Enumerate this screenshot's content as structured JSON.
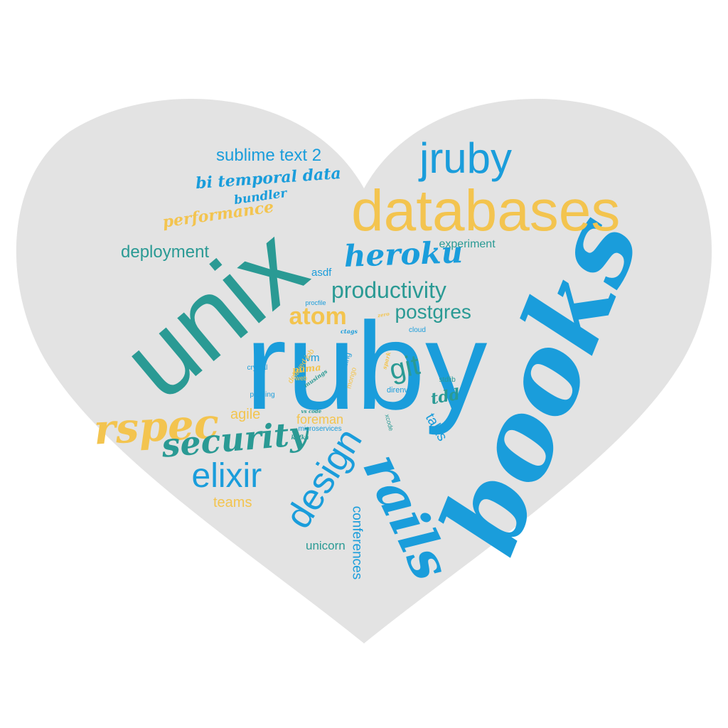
{
  "colors": {
    "background": "#ffffff",
    "heart": "#e3e3e3",
    "blue": "#1a9ddb",
    "teal": "#2a9a94",
    "yellow": "#f3c44f"
  },
  "shape": "heart",
  "words": [
    {
      "text": "ruby",
      "color": "blue",
      "style": "sans"
    },
    {
      "text": "unix",
      "color": "teal",
      "style": "sans"
    },
    {
      "text": "books",
      "color": "blue",
      "style": "script"
    },
    {
      "text": "databases",
      "color": "yellow",
      "style": "sans"
    },
    {
      "text": "jruby",
      "color": "blue",
      "style": "sans"
    },
    {
      "text": "rails",
      "color": "blue",
      "style": "script"
    },
    {
      "text": "design",
      "color": "blue",
      "style": "sans"
    },
    {
      "text": "rspec",
      "color": "yellow",
      "style": "script"
    },
    {
      "text": "security",
      "color": "teal",
      "style": "script"
    },
    {
      "text": "elixir",
      "color": "blue",
      "style": "sans"
    },
    {
      "text": "git",
      "color": "teal",
      "style": "sans"
    },
    {
      "text": "heroku",
      "color": "blue",
      "style": "script"
    },
    {
      "text": "productivity",
      "color": "teal",
      "style": "sans"
    },
    {
      "text": "postgres",
      "color": "teal",
      "style": "sans"
    },
    {
      "text": "atom",
      "color": "yellow",
      "style": "sans"
    },
    {
      "text": "sublime text 2",
      "color": "blue",
      "style": "sans"
    },
    {
      "text": "bi temporal data",
      "color": "blue",
      "style": "script"
    },
    {
      "text": "bundler",
      "color": "blue",
      "style": "script"
    },
    {
      "text": "performance",
      "color": "yellow",
      "style": "script"
    },
    {
      "text": "deployment",
      "color": "teal",
      "style": "sans"
    },
    {
      "text": "experiment",
      "color": "teal",
      "style": "sans"
    },
    {
      "text": "asdf",
      "color": "blue",
      "style": "sans"
    },
    {
      "text": "conferences",
      "color": "blue",
      "style": "sans"
    },
    {
      "text": "unicorn",
      "color": "teal",
      "style": "sans"
    },
    {
      "text": "teams",
      "color": "yellow",
      "style": "sans"
    },
    {
      "text": "agile",
      "color": "yellow",
      "style": "sans"
    },
    {
      "text": "foreman",
      "color": "yellow",
      "style": "sans"
    },
    {
      "text": "talks",
      "color": "blue",
      "style": "sans"
    },
    {
      "text": "tdd",
      "color": "teal",
      "style": "script"
    },
    {
      "text": "rvm",
      "color": "blue",
      "style": "sans"
    },
    {
      "text": "puma",
      "color": "yellow",
      "style": "script"
    },
    {
      "text": "delayed job",
      "color": "yellow",
      "style": "sans"
    },
    {
      "text": "web",
      "color": "yellow",
      "style": "sans"
    },
    {
      "text": "musings",
      "color": "teal",
      "style": "script"
    },
    {
      "text": "mongo",
      "color": "yellow",
      "style": "sans"
    },
    {
      "text": "threading",
      "color": "blue",
      "style": "sans"
    },
    {
      "text": "spark",
      "color": "yellow",
      "style": "script"
    },
    {
      "text": "direnv",
      "color": "blue",
      "style": "sans"
    },
    {
      "text": "stdlib",
      "color": "teal",
      "style": "sans"
    },
    {
      "text": "cloud",
      "color": "blue",
      "style": "sans"
    },
    {
      "text": "ctags",
      "color": "blue",
      "style": "script"
    },
    {
      "text": "procfile",
      "color": "blue",
      "style": "sans"
    },
    {
      "text": "zero",
      "color": "yellow",
      "style": "script"
    },
    {
      "text": "crystal",
      "color": "blue",
      "style": "sans"
    },
    {
      "text": "profiling",
      "color": "blue",
      "style": "sans"
    },
    {
      "text": "vs code",
      "color": "teal",
      "style": "script"
    },
    {
      "text": "microservices",
      "color": "blue",
      "style": "sans"
    },
    {
      "text": "kafka",
      "color": "teal",
      "style": "script"
    },
    {
      "text": "xcode",
      "color": "teal",
      "style": "sans"
    }
  ]
}
